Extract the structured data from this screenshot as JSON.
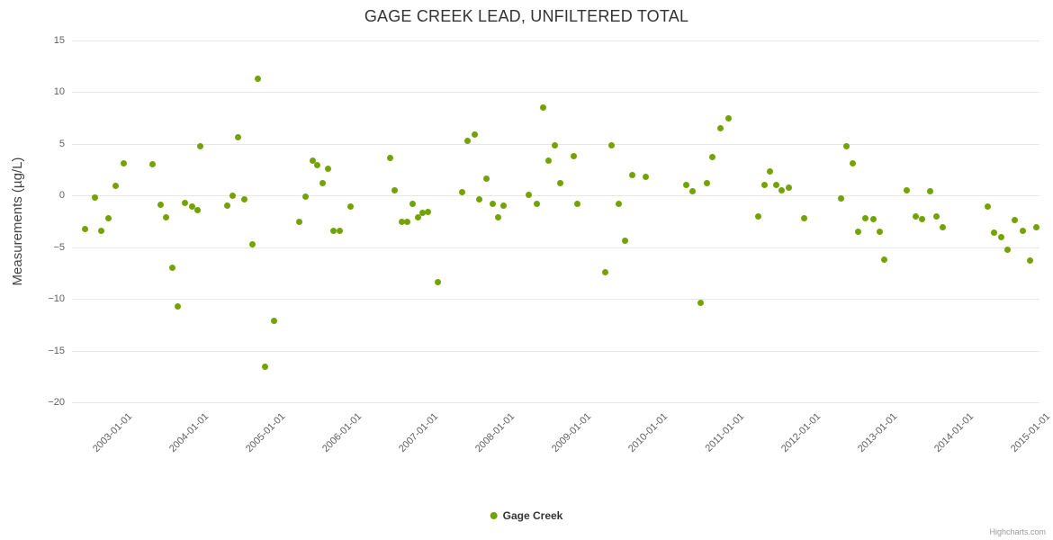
{
  "title": "GAGE CREEK LEAD, UNFILTERED TOTAL",
  "ylabel": "Measurements (µg/L)",
  "legend": {
    "series_label": "Gage Creek"
  },
  "credits": "Highcharts.com",
  "colors": {
    "point": "#73A302",
    "grid": "#e6e6e6",
    "title": "#333333",
    "axis_label": "#606060",
    "legend_text": "#333333",
    "credits": "#999999",
    "background": "#ffffff"
  },
  "chart_data": {
    "type": "scatter",
    "title": "GAGE CREEK LEAD, UNFILTERED TOTAL",
    "xlabel": "",
    "ylabel": "Measurements (µg/L)",
    "ylim": [
      -20,
      15
    ],
    "xlim": [
      2002.235,
      2014.882
    ],
    "grid": "horizontal",
    "legend_position": "bottom-center",
    "y_ticks": [
      {
        "value": 15,
        "label": "15"
      },
      {
        "value": 10,
        "label": "10"
      },
      {
        "value": 5,
        "label": "5"
      },
      {
        "value": 0,
        "label": "0"
      },
      {
        "value": -5,
        "label": "−5"
      },
      {
        "value": -10,
        "label": "−10"
      },
      {
        "value": -15,
        "label": "−15"
      },
      {
        "value": -20,
        "label": "−20"
      }
    ],
    "x_ticks": [
      {
        "value": 2003,
        "label": "2003-01-01"
      },
      {
        "value": 2004,
        "label": "2004-01-01"
      },
      {
        "value": 2005,
        "label": "2005-01-01"
      },
      {
        "value": 2006,
        "label": "2006-01-01"
      },
      {
        "value": 2007,
        "label": "2007-01-01"
      },
      {
        "value": 2008,
        "label": "2008-01-01"
      },
      {
        "value": 2009,
        "label": "2009-01-01"
      },
      {
        "value": 2010,
        "label": "2010-01-01"
      },
      {
        "value": 2011,
        "label": "2011-01-01"
      },
      {
        "value": 2012,
        "label": "2012-01-01"
      },
      {
        "value": 2013,
        "label": "2013-01-01"
      },
      {
        "value": 2014,
        "label": "2014-01-01"
      },
      {
        "value": 2015,
        "label": "2015-01-01"
      }
    ],
    "series": [
      {
        "name": "Gage Creek",
        "color": "#73A302",
        "points": [
          [
            2002.41,
            -3.2
          ],
          [
            2002.53,
            -0.2
          ],
          [
            2002.62,
            -3.4
          ],
          [
            2002.71,
            -2.2
          ],
          [
            2002.8,
            0.9
          ],
          [
            2002.91,
            3.1
          ],
          [
            2003.29,
            3.0
          ],
          [
            2003.39,
            -0.9
          ],
          [
            2003.47,
            -2.1
          ],
          [
            2003.55,
            -7.0
          ],
          [
            2003.62,
            -10.7
          ],
          [
            2003.71,
            -0.7
          ],
          [
            2003.8,
            -1.1
          ],
          [
            2003.88,
            -1.4
          ],
          [
            2003.91,
            4.8
          ],
          [
            2004.26,
            -1.0
          ],
          [
            2004.33,
            0.0
          ],
          [
            2004.41,
            5.6
          ],
          [
            2004.49,
            -0.4
          ],
          [
            2004.59,
            -4.7
          ],
          [
            2004.67,
            11.3
          ],
          [
            2004.76,
            -16.6
          ],
          [
            2004.88,
            -12.1
          ],
          [
            2005.21,
            -2.5
          ],
          [
            2005.29,
            -0.1
          ],
          [
            2005.38,
            3.4
          ],
          [
            2005.44,
            2.9
          ],
          [
            2005.51,
            1.2
          ],
          [
            2005.58,
            2.6
          ],
          [
            2005.65,
            -3.4
          ],
          [
            2005.73,
            -3.4
          ],
          [
            2005.88,
            -1.1
          ],
          [
            2006.39,
            3.6
          ],
          [
            2006.45,
            0.5
          ],
          [
            2006.55,
            -2.5
          ],
          [
            2006.62,
            -2.5
          ],
          [
            2006.69,
            -0.8
          ],
          [
            2006.76,
            -2.1
          ],
          [
            2006.82,
            -1.7
          ],
          [
            2006.89,
            -1.6
          ],
          [
            2007.02,
            -8.4
          ],
          [
            2007.33,
            0.3
          ],
          [
            2007.41,
            5.3
          ],
          [
            2007.5,
            5.9
          ],
          [
            2007.56,
            -0.4
          ],
          [
            2007.65,
            1.6
          ],
          [
            2007.73,
            -0.8
          ],
          [
            2007.8,
            -2.1
          ],
          [
            2007.88,
            -1.0
          ],
          [
            2008.21,
            0.1
          ],
          [
            2008.31,
            -0.8
          ],
          [
            2008.39,
            8.5
          ],
          [
            2008.47,
            3.4
          ],
          [
            2008.55,
            4.9
          ],
          [
            2008.62,
            1.2
          ],
          [
            2008.79,
            3.8
          ],
          [
            2008.84,
            -0.8
          ],
          [
            2009.2,
            -7.4
          ],
          [
            2009.29,
            4.9
          ],
          [
            2009.38,
            -0.8
          ],
          [
            2009.47,
            -4.4
          ],
          [
            2009.56,
            2.0
          ],
          [
            2009.74,
            1.8
          ],
          [
            2010.26,
            1.0
          ],
          [
            2010.35,
            0.4
          ],
          [
            2010.45,
            -10.4
          ],
          [
            2010.53,
            1.2
          ],
          [
            2010.6,
            3.7
          ],
          [
            2010.71,
            6.5
          ],
          [
            2010.82,
            7.5
          ],
          [
            2011.21,
            -2.0
          ],
          [
            2011.29,
            1.0
          ],
          [
            2011.36,
            2.3
          ],
          [
            2011.44,
            1.0
          ],
          [
            2011.51,
            0.5
          ],
          [
            2011.61,
            0.8
          ],
          [
            2011.8,
            -2.2
          ],
          [
            2012.29,
            -0.3
          ],
          [
            2012.36,
            4.8
          ],
          [
            2012.44,
            3.1
          ],
          [
            2012.51,
            -3.5
          ],
          [
            2012.61,
            -2.2
          ],
          [
            2012.71,
            -2.3
          ],
          [
            2012.79,
            -3.5
          ],
          [
            2012.85,
            -6.2
          ],
          [
            2013.15,
            0.5
          ],
          [
            2013.26,
            -2.0
          ],
          [
            2013.35,
            -2.3
          ],
          [
            2013.45,
            0.4
          ],
          [
            2013.53,
            -2.0
          ],
          [
            2013.62,
            -3.1
          ],
          [
            2014.21,
            -1.1
          ],
          [
            2014.29,
            -3.6
          ],
          [
            2014.38,
            -4.0
          ],
          [
            2014.47,
            -5.2
          ],
          [
            2014.56,
            -2.4
          ],
          [
            2014.66,
            -3.4
          ],
          [
            2014.76,
            -6.3
          ],
          [
            2014.84,
            -3.1
          ]
        ]
      }
    ]
  }
}
